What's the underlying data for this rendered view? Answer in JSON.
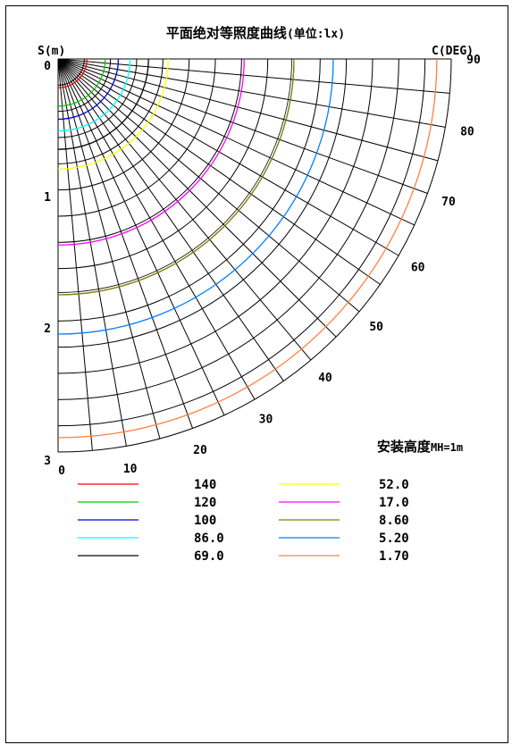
{
  "chart_data": {
    "type": "polar-isolux",
    "title_main": "平面绝对等照度曲线",
    "title_unit": "(单位:lx)",
    "radial_axis_label": "S(m)",
    "angle_axis_label": "C(DEG)",
    "radial_ticks": [
      "0",
      "1",
      "2",
      "3"
    ],
    "radial_range": [
      0,
      3
    ],
    "angle_ticks": [
      "0",
      "10",
      "20",
      "30",
      "40",
      "50",
      "60",
      "70",
      "80",
      "90"
    ],
    "angle_range": [
      0,
      90
    ],
    "grid": true,
    "mount_height_label": "安装高度",
    "mount_height_value": "MH=1m",
    "series": [
      {
        "name": "140",
        "color": "#ff0000",
        "radius_m": 0.22
      },
      {
        "name": "120",
        "color": "#00cc00",
        "radius_m": 0.36
      },
      {
        "name": "100",
        "color": "#0000cc",
        "radius_m": 0.46
      },
      {
        "name": "86.0",
        "color": "#00ffff",
        "radius_m": 0.55
      },
      {
        "name": "69.0",
        "color": "#000000",
        "radius_m": 0.69
      },
      {
        "name": "52.0",
        "color": "#ffff00",
        "radius_m": 0.84
      },
      {
        "name": "17.0",
        "color": "#ff00ff",
        "radius_m": 1.42
      },
      {
        "name": "8.60",
        "color": "#808000",
        "radius_m": 1.8
      },
      {
        "name": "5.20",
        "color": "#0080ff",
        "radius_m": 2.1
      },
      {
        "name": "1.70",
        "color": "#ff8040",
        "radius_m": 2.89
      }
    ]
  }
}
